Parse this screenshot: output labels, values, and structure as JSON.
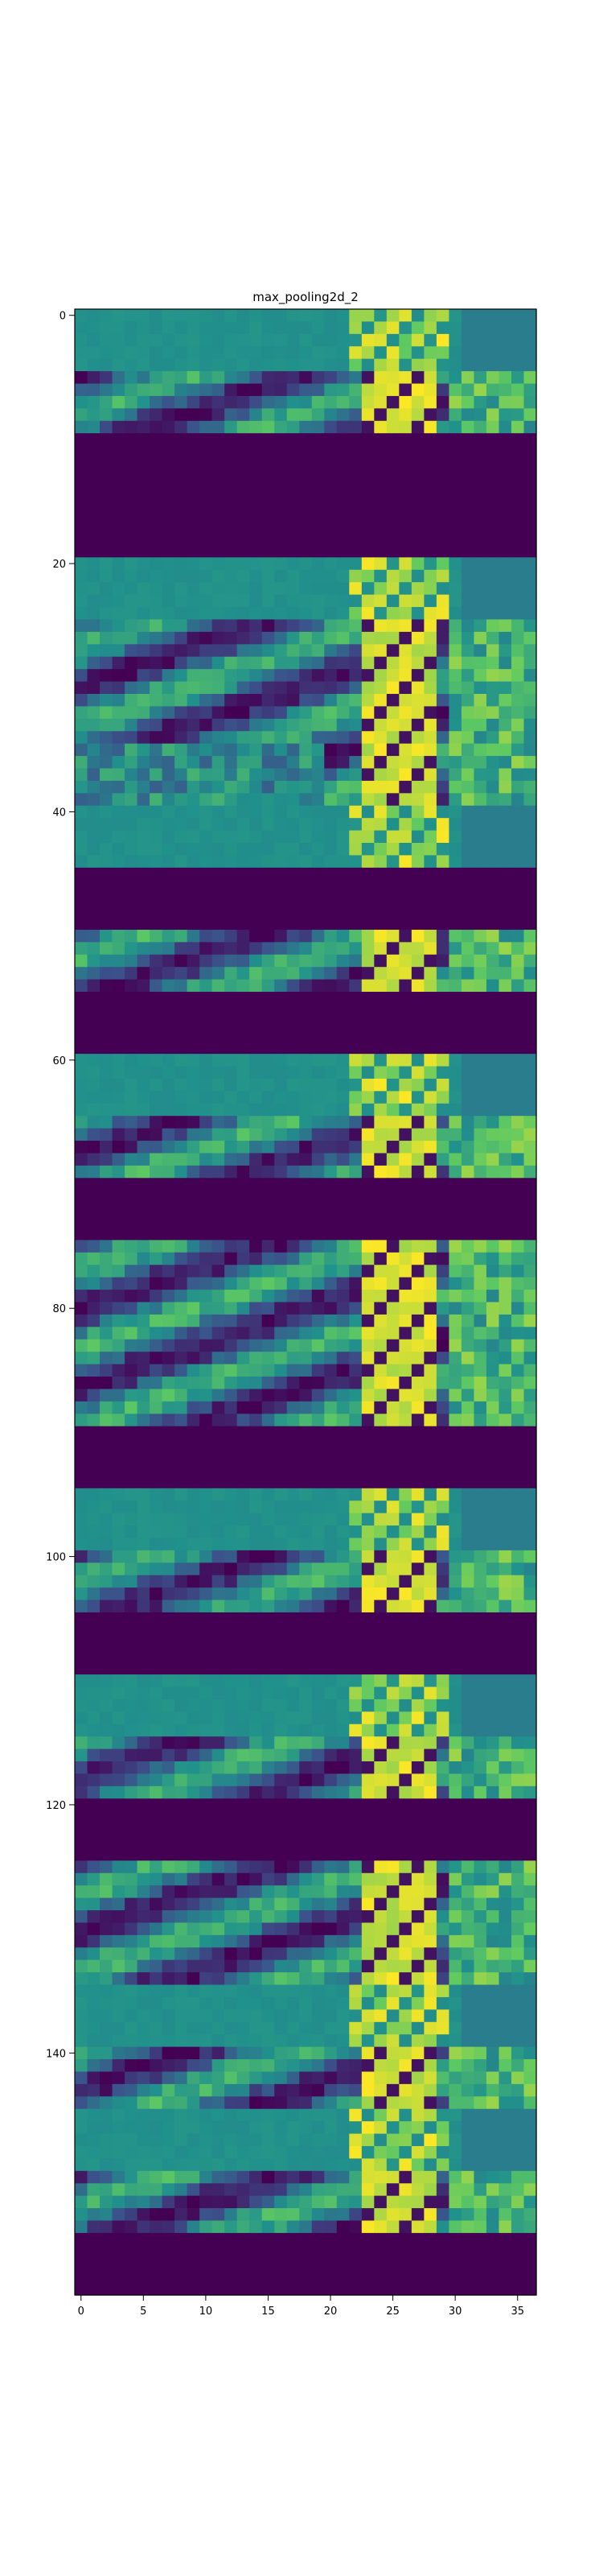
{
  "chart_data": {
    "type": "heatmap",
    "title": "max_pooling2d_2",
    "colormap": "viridis",
    "xlim": [
      -0.5,
      36.5
    ],
    "ylim": [
      159.5,
      -0.5
    ],
    "x_ticks": [
      0,
      5,
      10,
      15,
      20,
      25,
      30,
      35
    ],
    "y_ticks": [
      0,
      20,
      40,
      60,
      80,
      100,
      120,
      140
    ],
    "columns": 37,
    "rows": 160,
    "channel_rows": 5,
    "channels_from_row_0": [
      "teal-bright-yellow",
      "varied",
      "purple",
      "purple",
      "teal-yellow-strip",
      "varied",
      "varied",
      "varied-high",
      "teal-yellow-strip",
      "purple",
      "varied-yellow",
      "purple",
      "teal-yellow-strip",
      "varied-yellow",
      "purple",
      "varied",
      "varied",
      "varied",
      "purple",
      "teal-yellow-strip",
      "varied",
      "purple",
      "teal-yellow-strip",
      "varied",
      "purple",
      "varied",
      "varied",
      "teal-yellow-strip",
      "varied",
      "teal-yellow-strip",
      "varied",
      "purple"
    ],
    "colors": {
      "low": "#440154",
      "mid_low": "#3b528b",
      "mid": "#21918c",
      "mid_high": "#5ec962",
      "high": "#fde725"
    }
  }
}
